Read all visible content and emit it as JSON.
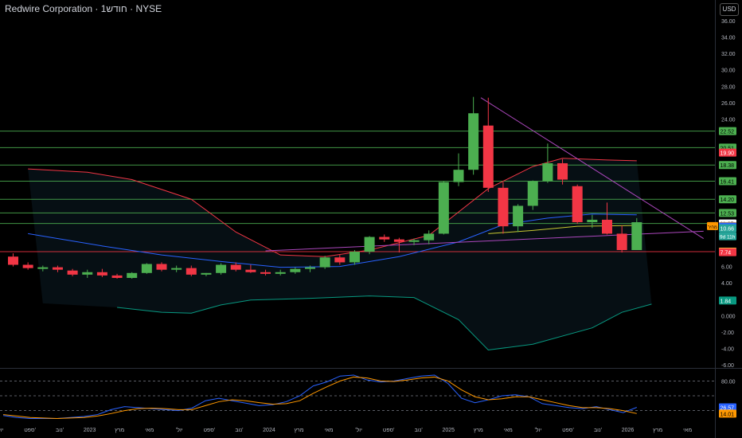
{
  "header": {
    "title": "Redwire Corporation · 1חודש · NYSE",
    "currency": "USD"
  },
  "chart_data": {
    "type": "candlestick",
    "symbol": "Redwire Corporation",
    "interval": "1חודש",
    "exchange": "NYSE",
    "ylim": [
      -6,
      36
    ],
    "y_ticks": [
      "-6.00",
      "-4.00",
      "-2.00",
      "0.000",
      "2.00",
      "4.00",
      "6.00",
      "8.00",
      "10.00",
      "12.00",
      "14.00",
      "16.00",
      "18.00",
      "20.00",
      "22.00",
      "24.00",
      "26.00",
      "28.00",
      "30.00",
      "32.00",
      "34.00",
      "36.00"
    ],
    "x_labels": [
      "'יול",
      "ספט'",
      "נוב'",
      "2023",
      "מרץ",
      "מאי",
      "'יול",
      "ספט'",
      "נוב'",
      "2024",
      "מרץ",
      "מאי",
      "'יול",
      "ספט'",
      "נוב'",
      "2025",
      "מרץ",
      "מאי",
      "'יול",
      "ספט'",
      "נוב'",
      "2026",
      "מרץ",
      "מאי"
    ],
    "candles": [
      {
        "o": 7.2,
        "h": 7.6,
        "l": 6.0,
        "c": 6.2
      },
      {
        "o": 6.2,
        "h": 6.5,
        "l": 5.6,
        "c": 5.8
      },
      {
        "o": 5.7,
        "h": 6.1,
        "l": 5.4,
        "c": 5.9
      },
      {
        "o": 5.9,
        "h": 6.1,
        "l": 5.3,
        "c": 5.6
      },
      {
        "o": 5.5,
        "h": 5.7,
        "l": 4.8,
        "c": 5.0
      },
      {
        "o": 5.0,
        "h": 5.6,
        "l": 4.6,
        "c": 5.3
      },
      {
        "o": 5.3,
        "h": 5.7,
        "l": 4.7,
        "c": 4.9
      },
      {
        "o": 4.9,
        "h": 5.1,
        "l": 4.5,
        "c": 4.6
      },
      {
        "o": 4.6,
        "h": 5.3,
        "l": 4.5,
        "c": 5.2
      },
      {
        "o": 5.2,
        "h": 6.4,
        "l": 5.1,
        "c": 6.3
      },
      {
        "o": 6.3,
        "h": 6.5,
        "l": 5.4,
        "c": 5.6
      },
      {
        "o": 5.6,
        "h": 6.1,
        "l": 5.3,
        "c": 5.8
      },
      {
        "o": 5.8,
        "h": 6.1,
        "l": 4.8,
        "c": 5.0
      },
      {
        "o": 5.0,
        "h": 5.2,
        "l": 4.8,
        "c": 5.2
      },
      {
        "o": 5.2,
        "h": 6.4,
        "l": 5.0,
        "c": 6.2
      },
      {
        "o": 6.2,
        "h": 6.5,
        "l": 5.4,
        "c": 5.6
      },
      {
        "o": 5.6,
        "h": 6.2,
        "l": 5.2,
        "c": 5.3
      },
      {
        "o": 5.3,
        "h": 5.6,
        "l": 4.9,
        "c": 5.1
      },
      {
        "o": 5.1,
        "h": 5.6,
        "l": 4.9,
        "c": 5.3
      },
      {
        "o": 5.3,
        "h": 5.9,
        "l": 5.1,
        "c": 5.7
      },
      {
        "o": 5.7,
        "h": 6.1,
        "l": 5.3,
        "c": 5.9
      },
      {
        "o": 5.9,
        "h": 7.3,
        "l": 5.7,
        "c": 7.1
      },
      {
        "o": 7.1,
        "h": 7.4,
        "l": 6.2,
        "c": 6.5
      },
      {
        "o": 6.5,
        "h": 8.0,
        "l": 6.2,
        "c": 7.8
      },
      {
        "o": 7.8,
        "h": 9.7,
        "l": 7.5,
        "c": 9.6
      },
      {
        "o": 9.6,
        "h": 9.9,
        "l": 9.0,
        "c": 9.3
      },
      {
        "o": 9.3,
        "h": 9.5,
        "l": 7.7,
        "c": 9.0
      },
      {
        "o": 9.0,
        "h": 9.4,
        "l": 8.6,
        "c": 9.2
      },
      {
        "o": 9.2,
        "h": 10.4,
        "l": 8.7,
        "c": 10.0
      },
      {
        "o": 10.0,
        "h": 16.4,
        "l": 9.9,
        "c": 16.3
      },
      {
        "o": 16.3,
        "h": 19.8,
        "l": 15.8,
        "c": 17.8
      },
      {
        "o": 17.8,
        "h": 26.7,
        "l": 17.2,
        "c": 24.7
      },
      {
        "o": 23.2,
        "h": 26.6,
        "l": 15.1,
        "c": 15.6
      },
      {
        "o": 15.6,
        "h": 16.3,
        "l": 10.0,
        "c": 10.9
      },
      {
        "o": 10.9,
        "h": 13.6,
        "l": 10.2,
        "c": 13.4
      },
      {
        "o": 13.4,
        "h": 16.5,
        "l": 12.9,
        "c": 16.4
      },
      {
        "o": 16.4,
        "h": 21.0,
        "l": 16.2,
        "c": 18.6
      },
      {
        "o": 18.6,
        "h": 19.1,
        "l": 16.0,
        "c": 16.6
      },
      {
        "o": 15.8,
        "h": 16.0,
        "l": 11.2,
        "c": 11.4
      },
      {
        "o": 11.4,
        "h": 12.3,
        "l": 10.7,
        "c": 11.7
      },
      {
        "o": 11.7,
        "h": 13.8,
        "l": 9.9,
        "c": 10.0
      },
      {
        "o": 10.0,
        "h": 11.0,
        "l": 7.7,
        "c": 8.0
      },
      {
        "o": 8.0,
        "h": 11.9,
        "l": 8.0,
        "c": 11.4
      }
    ],
    "moving_averages": [
      {
        "color": "#2962ff",
        "points": [
          [
            1,
            10.0
          ],
          [
            6,
            8.5
          ],
          [
            10,
            7.4
          ],
          [
            14,
            6.6
          ],
          [
            18,
            5.9
          ],
          [
            22,
            6.0
          ],
          [
            26,
            7.2
          ],
          [
            30,
            9.0
          ],
          [
            33,
            11.1
          ],
          [
            36,
            11.9
          ],
          [
            39,
            12.4
          ],
          [
            42,
            12.3
          ]
        ]
      },
      {
        "color": "#f23645",
        "points": [
          [
            1,
            17.9
          ],
          [
            5,
            17.5
          ],
          [
            8,
            16.6
          ],
          [
            12,
            14.2
          ],
          [
            15,
            10.2
          ],
          [
            18,
            7.4
          ],
          [
            21,
            7.2
          ],
          [
            24,
            8.0
          ],
          [
            28,
            9.8
          ],
          [
            32,
            15.5
          ],
          [
            35,
            18.2
          ],
          [
            37,
            19.2
          ],
          [
            40,
            19.0
          ],
          [
            42,
            18.9
          ]
        ]
      },
      {
        "color": "#089981",
        "points": [
          [
            7,
            1.0
          ],
          [
            10,
            0.4
          ],
          [
            12,
            0.3
          ],
          [
            14,
            1.3
          ],
          [
            16,
            1.9
          ],
          [
            20,
            2.1
          ],
          [
            24,
            2.4
          ],
          [
            27,
            2.2
          ],
          [
            30,
            -0.5
          ],
          [
            32,
            -4.2
          ],
          [
            35,
            -3.5
          ],
          [
            39,
            -1.5
          ],
          [
            41,
            0.4
          ],
          [
            43,
            1.4
          ]
        ]
      },
      {
        "color": "#c8c832",
        "points": [
          [
            32,
            10.0
          ],
          [
            35,
            10.4
          ],
          [
            38,
            10.9
          ],
          [
            42,
            11.0
          ]
        ]
      }
    ],
    "bands_fill": {
      "upper_color": "#1e3a3a",
      "lower_color": "#0d1f2a"
    },
    "trendlines": [
      {
        "color": "#ab47bc",
        "from": [
          31.5,
          26.6
        ],
        "to": [
          46.5,
          9.4
        ]
      },
      {
        "color": "#ab47bc",
        "from": [
          17,
          7.9
        ],
        "to": [
          46.5,
          10.3
        ]
      }
    ],
    "horizontal_levels": [
      {
        "value": 22.52,
        "color": "#4caf50"
      },
      {
        "value": 20.51,
        "color": "#4caf50"
      },
      {
        "value": 18.38,
        "color": "#4caf50"
      },
      {
        "value": 16.41,
        "color": "#4caf50"
      },
      {
        "value": 14.2,
        "color": "#4caf50"
      },
      {
        "value": 12.53,
        "color": "#4caf50"
      },
      {
        "value": 11.25,
        "color": "#4caf50"
      },
      {
        "value": 7.81,
        "color": "#f23645"
      }
    ],
    "price_labels": [
      {
        "text": "22.52",
        "value": 22.52,
        "bg": "#4caf50",
        "fg": "#000000"
      },
      {
        "text": "20.51",
        "value": 20.51,
        "bg": "#4caf50",
        "fg": "#000000"
      },
      {
        "text": "19.90",
        "value": 19.9,
        "bg": "#f23645",
        "fg": "#ffffff"
      },
      {
        "text": "18.38",
        "value": 18.38,
        "bg": "#4caf50",
        "fg": "#000000"
      },
      {
        "text": "16.41",
        "value": 16.41,
        "bg": "#4caf50",
        "fg": "#000000"
      },
      {
        "text": "14.20",
        "value": 14.2,
        "bg": "#4caf50",
        "fg": "#000000"
      },
      {
        "text": "12.53",
        "value": 12.53,
        "bg": "#4caf50",
        "fg": "#000000"
      },
      {
        "text": "11.25",
        "value": 11.25,
        "bg": "#ffffff",
        "fg": "#000000"
      },
      {
        "text": "10.93",
        "value": 10.93,
        "bg": "#ff9800",
        "fg": "#000000"
      },
      {
        "text": "10.87",
        "value": 10.87,
        "bg": "#2962ff",
        "fg": "#ffffff"
      },
      {
        "text": "10.66",
        "value": 10.66,
        "bg": "#26a69a",
        "fg": "#ffffff"
      },
      {
        "text": "7.81",
        "value": 7.81,
        "bg": "#ffeb3b",
        "fg": "#000000"
      },
      {
        "text": "7.74",
        "value": 7.74,
        "bg": "#f23645",
        "fg": "#ffffff"
      },
      {
        "text": "1.84",
        "value": 1.84,
        "bg": "#089981",
        "fg": "#ffffff"
      }
    ],
    "countdown_label": "9d 11h",
    "orange_tag": "מחיר",
    "oscillator": {
      "levels": [
        80,
        50,
        20
      ],
      "level_labels": [
        "80.00",
        "20.00"
      ],
      "series": [
        {
          "color": "#2962ff",
          "values": [
            10,
            6,
            4,
            4,
            4,
            6,
            8,
            12,
            22,
            28,
            26,
            24,
            22,
            20,
            25,
            40,
            45,
            40,
            35,
            30,
            32,
            38,
            50,
            70,
            78,
            90,
            92,
            82,
            78,
            80,
            85,
            90,
            92,
            75,
            45,
            36,
            42,
            50,
            52,
            48,
            34,
            30,
            26,
            24,
            28,
            22,
            16,
            26.57
          ]
        },
        {
          "color": "#ff9800",
          "values": [
            12,
            9,
            6,
            5,
            4,
            5,
            6,
            9,
            14,
            20,
            24,
            25,
            24,
            22,
            22,
            30,
            38,
            42,
            40,
            36,
            33,
            34,
            40,
            55,
            68,
            80,
            88,
            86,
            80,
            79,
            82,
            86,
            88,
            80,
            62,
            48,
            42,
            44,
            48,
            48,
            42,
            36,
            30,
            26,
            26,
            24,
            20,
            14.01
          ]
        }
      ],
      "value_labels": [
        {
          "text": "26.57",
          "value": 26.57,
          "bg": "#2962ff",
          "fg": "#ffffff"
        },
        {
          "text": "14.01",
          "value": 14.01,
          "bg": "#ff9800",
          "fg": "#000000"
        }
      ]
    }
  }
}
